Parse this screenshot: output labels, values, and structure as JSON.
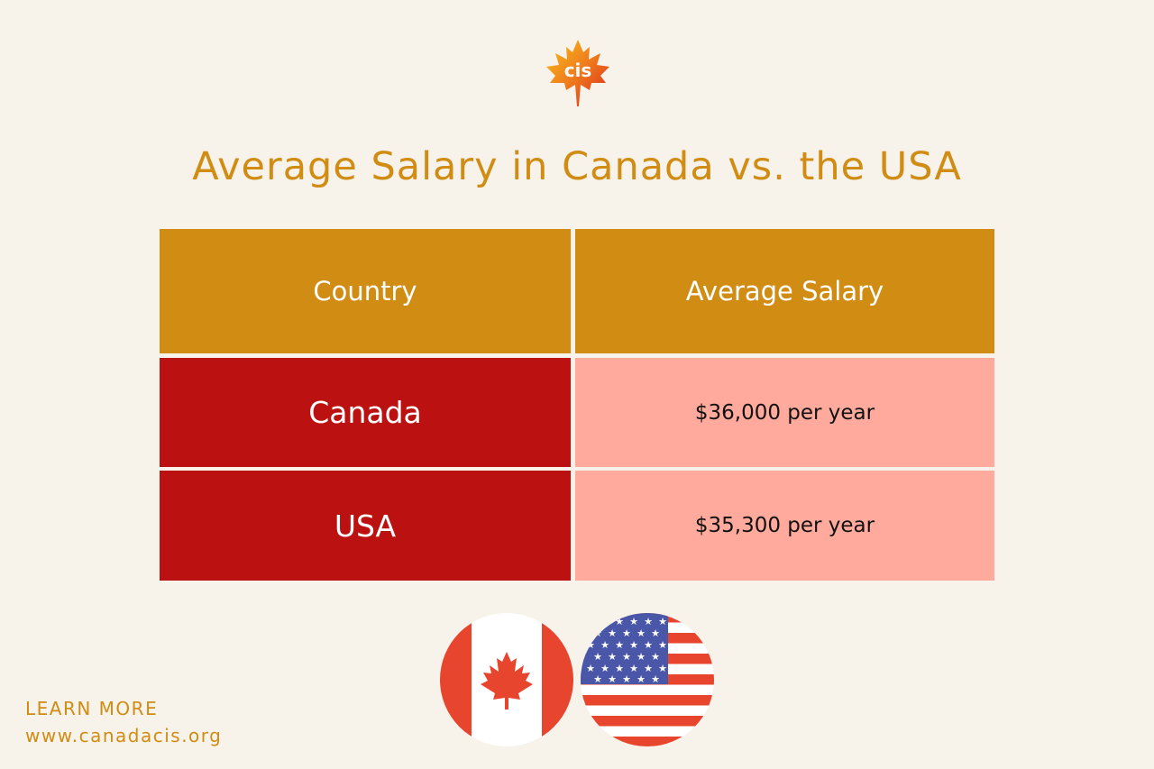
{
  "logo": {
    "text": "cis",
    "icon": "maple-leaf-logo-icon",
    "color": "#e8511c"
  },
  "title": "Average Salary in Canada vs. the USA",
  "table": {
    "headers": [
      "Country",
      "Average Salary"
    ],
    "rows": [
      {
        "country": "Canada",
        "salary": "$36,000 per year"
      },
      {
        "country": "USA",
        "salary": "$35,300 per year"
      }
    ]
  },
  "colors": {
    "accent": "#d08c13",
    "country_cell": "#bc1111",
    "salary_cell": "#ffaa9c",
    "background": "#f7f2ea"
  },
  "flags": [
    {
      "name": "canada-flag-icon"
    },
    {
      "name": "usa-flag-icon"
    }
  ],
  "footer": {
    "learn_more": "LEARN MORE",
    "website": "www.canadacis.org"
  }
}
